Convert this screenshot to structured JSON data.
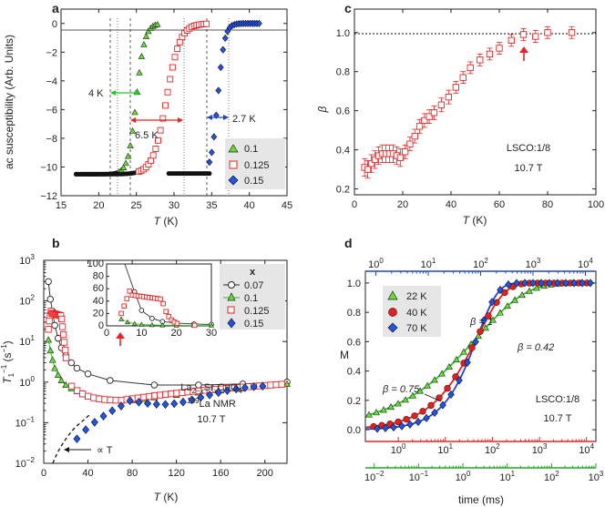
{
  "chart_data": [
    {
      "panel": "a",
      "type": "scatter",
      "xlabel": "T (K)",
      "ylabel": "ac susceptibility (Arb. Units)",
      "xlim": [
        15,
        45
      ],
      "ylim": [
        -12,
        1
      ],
      "xticks": [
        "15",
        "20",
        "25",
        "30",
        "35",
        "40",
        "45"
      ],
      "yticks": [
        "0",
        "-2",
        "-4",
        "-6",
        "-8",
        "-10",
        "-12"
      ],
      "legend": [
        "0.1",
        "0.125",
        "0.15"
      ],
      "series": [
        {
          "name": "0.1",
          "color": "#22aa22",
          "marker": "triangle",
          "tc": 25.0,
          "width": 0.55,
          "xmin": 17,
          "xmax": 28
        },
        {
          "name": "0.125",
          "color": "#ee2222",
          "marker": "open-square",
          "tc": 29.0,
          "width": 0.9,
          "xmin": 17,
          "xmax": 35
        },
        {
          "name": "0.15",
          "color": "#2244cc",
          "marker": "diamond",
          "tc": 35.8,
          "width": 0.45,
          "xmin": 17,
          "xmax": 41.5
        }
      ],
      "annotations": [
        "4 K",
        "6.5 K",
        "2.7 K"
      ]
    },
    {
      "panel": "b",
      "type": "scatter",
      "xlabel": "T (K)",
      "ylabel": "T1^-1 (s^-1)",
      "xlim": [
        0,
        220
      ],
      "ylim_log10": [
        -2,
        3
      ],
      "xticks": [
        "0",
        "40",
        "80",
        "120",
        "160",
        "200"
      ],
      "yticks": [
        "10^-2",
        "10^-1",
        "10^0",
        "10^1",
        "10^2",
        "10^3"
      ],
      "legend_title": "x",
      "legend": [
        "0.07",
        "0.1",
        "0.125",
        "0.15"
      ],
      "annotation_formula": "La2-xSrxCuO4",
      "annotation_nmr": "139La NMR",
      "annotation_field": "10.7 T",
      "annotation_law": "∝ T",
      "inset": {
        "xlim": [
          0,
          30
        ],
        "ylim": [
          0,
          100
        ],
        "xticks": [
          "0",
          "10",
          "20",
          "30"
        ],
        "yticks": [
          "0",
          "20",
          "40",
          "60",
          "80",
          "100"
        ]
      },
      "series": [
        {
          "name": "0.07",
          "color": "#222222",
          "marker": "open-circle",
          "x": [
            4.2,
            6,
            8,
            10,
            13,
            16,
            20,
            25,
            30,
            40,
            60,
            100,
            140,
            180,
            220
          ],
          "y": [
            300,
            110,
            55,
            25,
            12,
            7,
            4.5,
            3,
            2.2,
            1.6,
            1.1,
            0.85,
            0.85,
            0.9,
            1.0
          ]
        },
        {
          "name": "0.1",
          "color": "#22aa22",
          "marker": "triangle",
          "x": [
            4.2,
            6,
            8,
            10,
            13,
            16,
            20,
            25,
            30,
            35,
            40,
            50,
            60,
            70,
            80,
            90,
            100,
            120,
            140,
            160,
            180,
            200,
            220
          ],
          "y": [
            11,
            6,
            3.5,
            2.2,
            1.5,
            1.1,
            0.85,
            0.7,
            0.6,
            0.5,
            0.45,
            0.4,
            0.37,
            0.35,
            0.36,
            0.38,
            0.42,
            0.48,
            0.55,
            0.62,
            0.7,
            0.8,
            0.9
          ]
        }
      ]
    },
    {
      "panel": "c",
      "type": "scatter",
      "xlabel": "T (K)",
      "ylabel": "β",
      "xlim": [
        0,
        100
      ],
      "ylim": [
        0.17,
        1.12
      ],
      "xticks": [
        "0",
        "20",
        "40",
        "60",
        "80",
        "100"
      ],
      "yticks": [
        "0.2",
        "0.4",
        "0.6",
        "0.8",
        "1.0"
      ],
      "sample_label": "LSCO:1/8",
      "field_label": "10.7 T",
      "series": [
        {
          "name": "beta",
          "color": "#ee2222",
          "marker": "open-square",
          "x": [
            4.2,
            5.5,
            7,
            8.5,
            10,
            11.5,
            13,
            14.5,
            16,
            17.5,
            19,
            21,
            23,
            25,
            27,
            29,
            31,
            33,
            36,
            39,
            42,
            45,
            48,
            52,
            56,
            60,
            65,
            70,
            75,
            80,
            90
          ],
          "y": [
            0.31,
            0.3,
            0.33,
            0.35,
            0.37,
            0.38,
            0.38,
            0.38,
            0.38,
            0.37,
            0.36,
            0.39,
            0.43,
            0.47,
            0.52,
            0.55,
            0.57,
            0.59,
            0.63,
            0.67,
            0.72,
            0.77,
            0.82,
            0.86,
            0.89,
            0.92,
            0.96,
            0.99,
            0.98,
            1.0,
            1.0
          ]
        }
      ]
    },
    {
      "panel": "d",
      "type": "scatter",
      "xlabel": "time (ms)",
      "ylabel": "M",
      "ylim": [
        -0.08,
        1.08
      ],
      "yticks": [
        "0.0",
        "0.2",
        "0.4",
        "0.6",
        "0.8",
        "1.0"
      ],
      "axis_top": {
        "color": "#2244cc",
        "log10_range": [
          -0.2,
          4.2
        ],
        "ticks": [
          "10^0",
          "10^1",
          "10^2",
          "10^3",
          "10^4"
        ]
      },
      "axis_bottom": {
        "color": "#ee2222",
        "log10_range": [
          -0.7,
          4.2
        ],
        "ticks": [
          "10^0",
          "10^1",
          "10^2",
          "10^3",
          "10^4"
        ]
      },
      "axis_extra": {
        "color": "#22aa22",
        "log10_range": [
          -2.2,
          3.0
        ],
        "ticks": [
          "10^-2",
          "10^-1",
          "10^0",
          "10^1",
          "10^2",
          "10^3"
        ]
      },
      "legend": [
        "22 K",
        "40 K",
        "70 K"
      ],
      "beta_labels": [
        "β = 1",
        "β = 0.42",
        "β = 0.75"
      ],
      "sample_label": "LSCO:1/8",
      "field_label": "10.7 T",
      "series": [
        {
          "name": "22 K",
          "color": "#22aa22",
          "marker": "triangle",
          "beta": 0.42
        },
        {
          "name": "40 K",
          "color": "#ee2222",
          "marker": "circle",
          "beta": 0.75
        },
        {
          "name": "70 K",
          "color": "#2244cc",
          "marker": "diamond",
          "beta": 1.0
        }
      ]
    }
  ]
}
